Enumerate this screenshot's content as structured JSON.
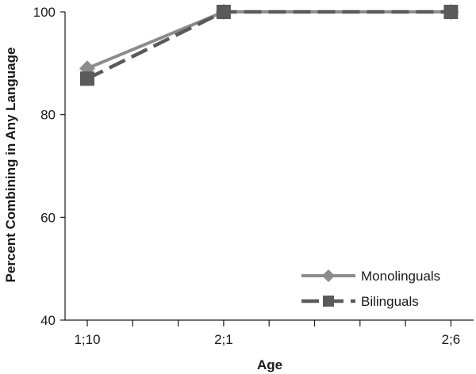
{
  "chart_data": {
    "type": "line",
    "title": "",
    "xlabel": "Age",
    "ylabel": "Percent Combining in Any Language",
    "x_ticks": [
      "1;10",
      "2;1",
      "2;6"
    ],
    "x_positions": [
      0,
      3,
      8
    ],
    "x_minor_tick_count": 9,
    "y_ticks": [
      40,
      60,
      80,
      100
    ],
    "ylim": [
      40,
      100
    ],
    "grid": false,
    "legend_position": "bottom-right",
    "series": [
      {
        "name": "Monolinguals",
        "x": [
          0,
          3,
          8
        ],
        "values": [
          89,
          100,
          100
        ],
        "marker": "diamond",
        "line_style": "solid",
        "color": "#8c8c8c"
      },
      {
        "name": "Bilinguals",
        "x": [
          0,
          3,
          8
        ],
        "values": [
          87,
          100,
          100
        ],
        "marker": "square",
        "line_style": "dashed",
        "color": "#5a5a5a"
      }
    ]
  }
}
